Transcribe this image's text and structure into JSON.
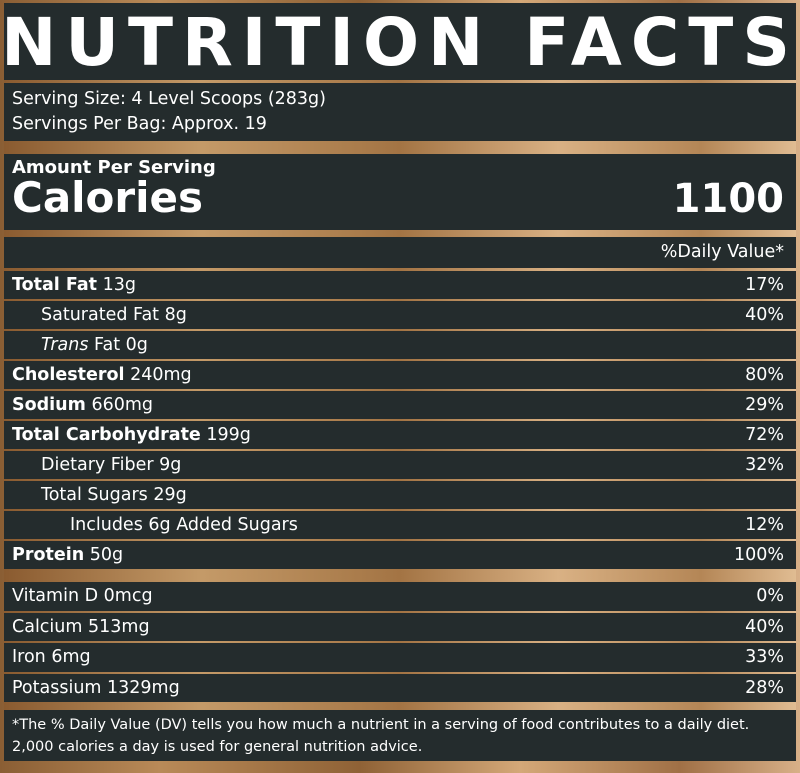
{
  "title": "NUTRITION FACTS",
  "serving": {
    "size": "Serving Size: 4 Level Scoops (283g)",
    "per_container": "Servings Per Bag: Approx. 19"
  },
  "calories": {
    "amount_label": "Amount Per Serving",
    "label": "Calories",
    "value": "1100"
  },
  "dv_header": "%Daily Value*",
  "nutrients": [
    {
      "name": "Total Fat",
      "amount": "13g",
      "dv": "17%"
    },
    {
      "name": "Saturated Fat",
      "amount": "8g",
      "dv": "40%"
    },
    {
      "name_italic": "Trans",
      "name": "Fat",
      "amount": "0g",
      "dv": ""
    },
    {
      "name": "Cholesterol",
      "amount": "240mg",
      "dv": "80%"
    },
    {
      "name": "Sodium",
      "amount": "660mg",
      "dv": "29%"
    },
    {
      "name": "Total Carbohydrate",
      "amount": "199g",
      "dv": "72%"
    },
    {
      "name": "Dietary Fiber",
      "amount": "9g",
      "dv": "32%"
    },
    {
      "name": "Total Sugars",
      "amount": "29g",
      "dv": ""
    },
    {
      "name": "Includes 6g Added Sugars",
      "amount": "",
      "dv": "12%"
    },
    {
      "name": "Protein",
      "amount": "50g",
      "dv": "100%"
    }
  ],
  "vitamins": [
    {
      "label": "Vitamin D 0mcg",
      "dv": "0%"
    },
    {
      "label": "Calcium 513mg",
      "dv": "40%"
    },
    {
      "label": "Iron 6mg",
      "dv": "33%"
    },
    {
      "label": "Potassium 1329mg",
      "dv": "28%"
    }
  ],
  "footnote": "*The % Daily Value (DV) tells you how much a nutrient in a serving of food contributes to a daily diet. 2,000 calories a day is used for general nutrition advice.",
  "colors": {
    "panel_bg": "#242c2d",
    "gold": "#c49a68",
    "text": "#ffffff"
  }
}
